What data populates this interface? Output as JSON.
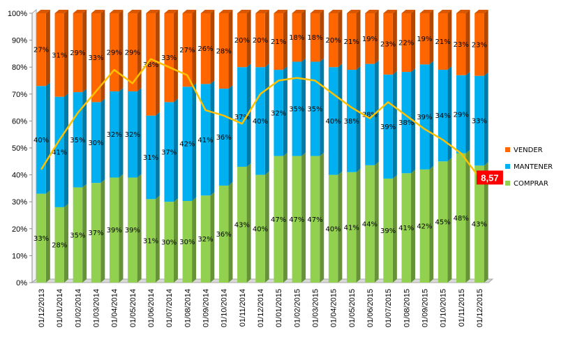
{
  "chart_data": {
    "type": "bar",
    "stacked": true,
    "normalized": true,
    "categories": [
      "01/12/2013",
      "01/01/2014",
      "01/02/2014",
      "01/03/2014",
      "01/04/2014",
      "01/05/2014",
      "01/06/2014",
      "01/07/2014",
      "01/08/2014",
      "01/09/2014",
      "01/10/2014",
      "01/11/2014",
      "01/12/2014",
      "01/01/2015",
      "01/02/2015",
      "01/03/2015",
      "01/04/2015",
      "01/05/2015",
      "01/06/2015",
      "01/07/2015",
      "01/08/2015",
      "01/09/2015",
      "01/10/2015",
      "01/11/2015",
      "01/12/2015"
    ],
    "series": [
      {
        "name": "COMPRAR",
        "color": "#92D050",
        "values": [
          33,
          28,
          35,
          37,
          39,
          39,
          31,
          30,
          30,
          32,
          36,
          43,
          40,
          47,
          47,
          47,
          40,
          41,
          44,
          39,
          41,
          42,
          45,
          48,
          43
        ],
        "labels": [
          "33%",
          "28%",
          "35%",
          "37%",
          "39%",
          "39%",
          "31%",
          "30%",
          "30%",
          "32%",
          "36%",
          "43%",
          "40%",
          "47%",
          "47%",
          "47%",
          "40%",
          "41%",
          "44%",
          "39%",
          "41%",
          "42%",
          "45%",
          "48%",
          "43%"
        ]
      },
      {
        "name": "MANTENER",
        "color": "#00B0F0",
        "values": [
          40,
          41,
          35,
          30,
          32,
          32,
          31,
          37,
          42,
          41,
          36,
          37,
          40,
          32,
          35,
          35,
          40,
          38,
          38,
          39,
          38,
          39,
          34,
          29,
          33
        ],
        "labels": [
          "40%",
          "41%",
          "35%",
          "30%",
          "32%",
          "32%",
          "31%",
          "37%",
          "42%",
          "41%",
          "36%",
          "37%",
          "40%",
          "32%",
          "35%",
          "35%",
          "40%",
          "38%",
          "38%",
          "39%",
          "38%",
          "39%",
          "34%",
          "29%",
          "33%"
        ]
      },
      {
        "name": "VENDER",
        "color": "#FF6600",
        "values": [
          27,
          31,
          29,
          33,
          29,
          29,
          38,
          33,
          27,
          26,
          28,
          20,
          20,
          21,
          18,
          18,
          20,
          21,
          19,
          23,
          22,
          19,
          21,
          23,
          23
        ],
        "labels": [
          "27%",
          "31%",
          "29%",
          "33%",
          "29%",
          "29%",
          "38%",
          "33%",
          "27%",
          "26%",
          "28%",
          "20%",
          "20%",
          "21%",
          "18%",
          "18%",
          "20%",
          "21%",
          "19%",
          "23%",
          "22%",
          "19%",
          "21%",
          "23%",
          "23%"
        ]
      }
    ],
    "line": {
      "color": "#FFC000",
      "values": [
        42,
        53,
        63,
        71,
        79,
        74,
        83,
        80,
        77,
        64,
        62,
        59,
        70,
        75,
        76,
        75,
        70,
        65,
        61,
        67,
        62,
        57,
        53,
        48,
        39
      ]
    },
    "yaxis": {
      "min": 0,
      "max": 100,
      "step": 10,
      "tick_labels": [
        "0%",
        "10%",
        "20%",
        "30%",
        "40%",
        "50%",
        "60%",
        "70%",
        "80%",
        "90%",
        "100%"
      ]
    },
    "legend_order": [
      "VENDER",
      "MANTENER",
      "COMPRAR"
    ],
    "legend_position": "right",
    "callout": {
      "text": "8,57",
      "color": "#FF0000"
    },
    "grid": false,
    "title": "",
    "xlabel": "",
    "ylabel": ""
  }
}
